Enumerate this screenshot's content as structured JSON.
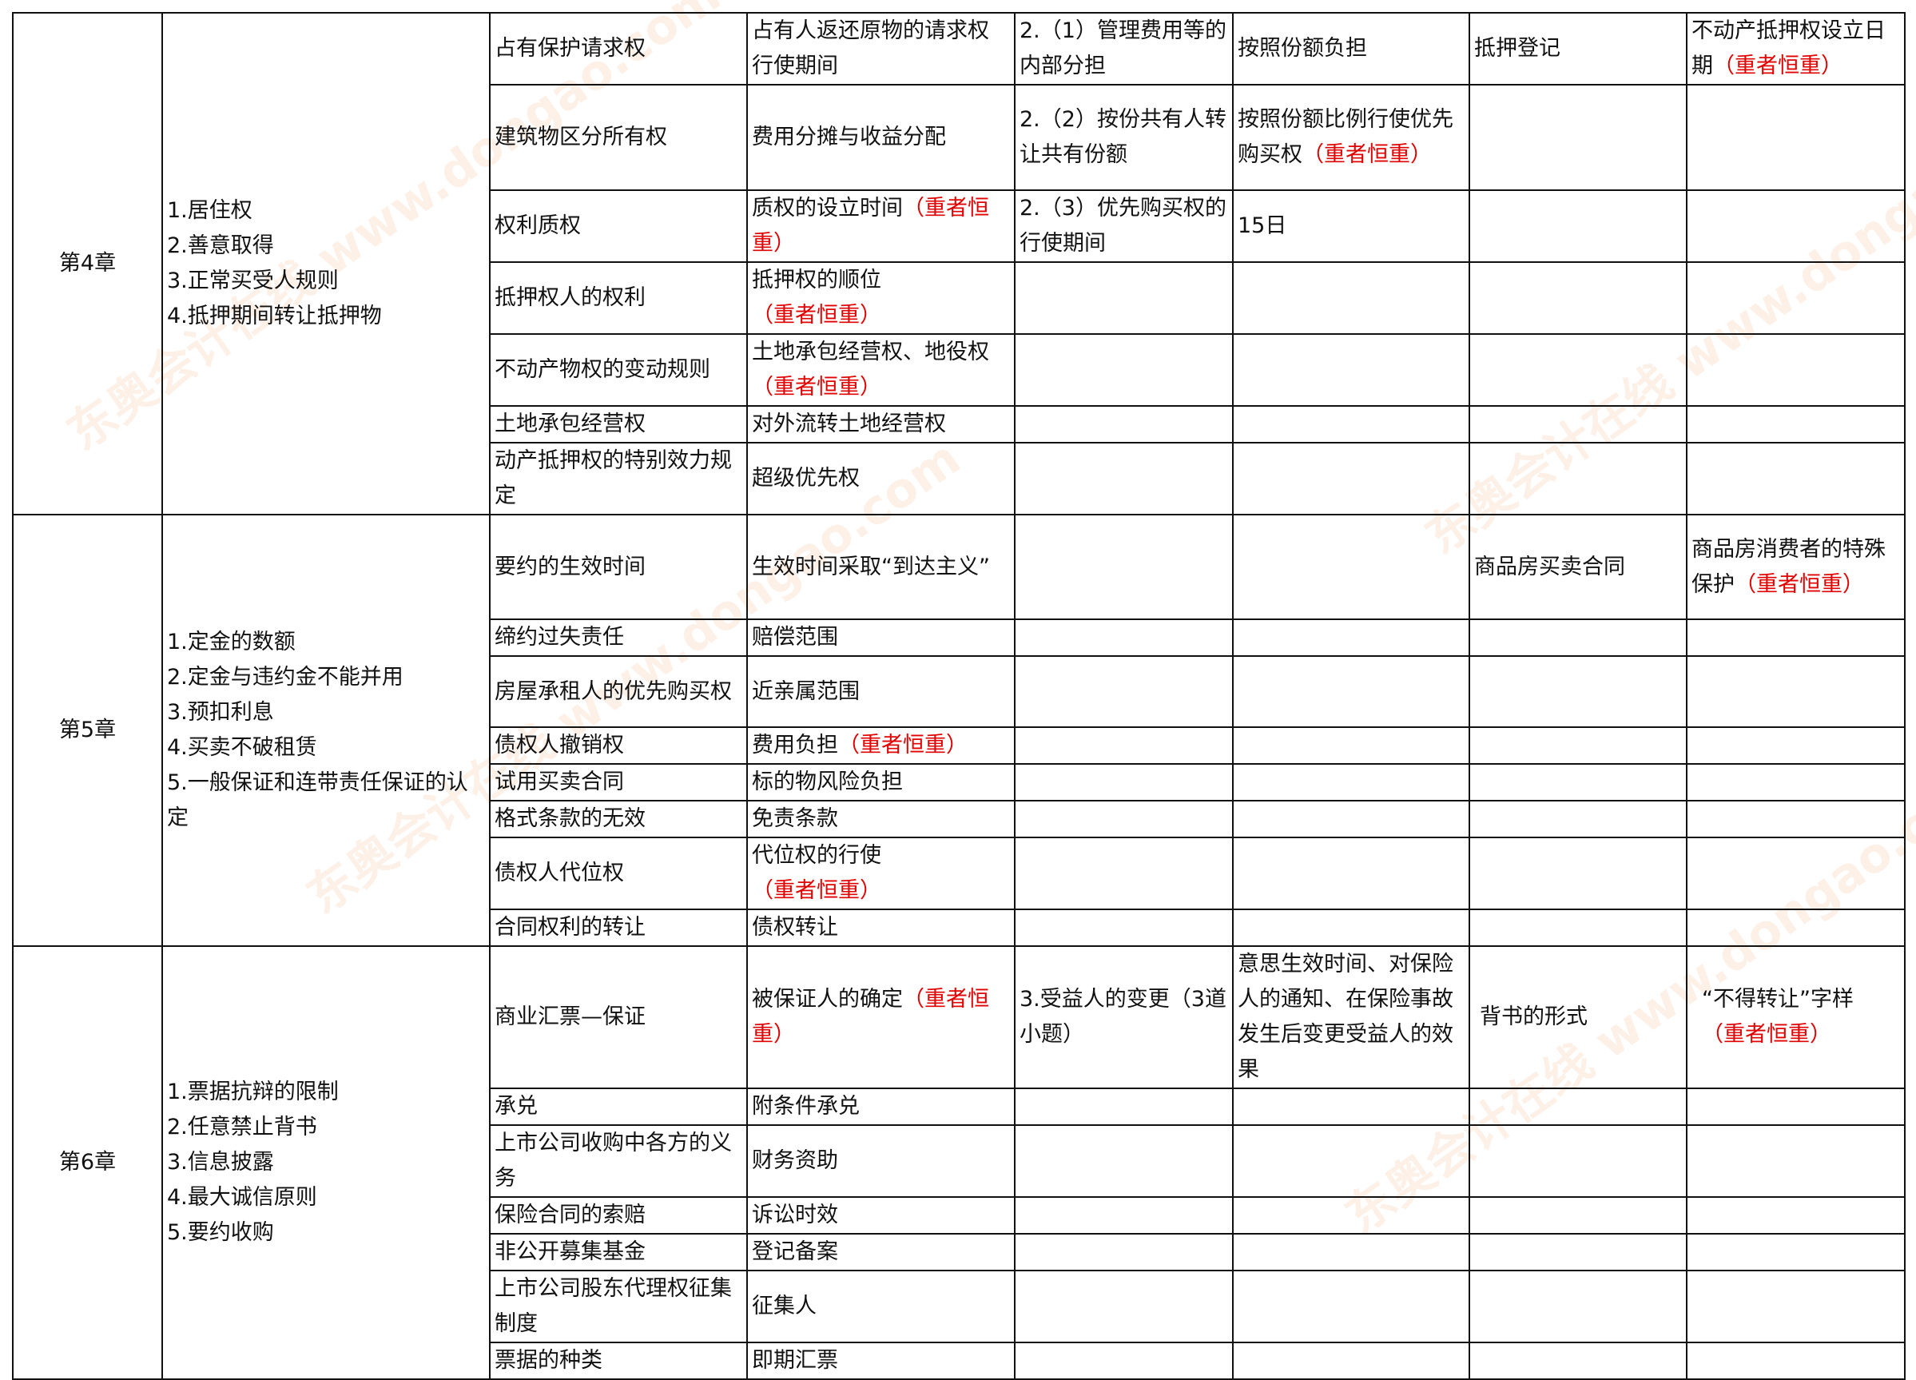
{
  "chapters": [
    {
      "name": "第4章",
      "points": [
        "1.居住权",
        "2.善意取得",
        "3.正常买受人规则",
        "4.抵押期间转让抵押物"
      ],
      "rows": [
        [
          {
            "t": "占有保护请求权"
          },
          {
            "t": "占有人返还原物的请求权行使期间"
          },
          {
            "t": "2.（1）管理费用等的内部分担"
          },
          {
            "t": "按照份额负担"
          },
          {
            "t": "抵押登记"
          },
          {
            "t": "不动产抵押权设立日期",
            "r": "（重者恒重）"
          }
        ],
        [
          {
            "t": "建筑物区分所有权"
          },
          {
            "t": "费用分摊与收益分配"
          },
          {
            "t": "2.（2）按份共有人转让共有份额"
          },
          {
            "t": "按照份额比例行使优先购买权",
            "r": "（重者恒重）"
          },
          {
            "t": ""
          },
          {
            "t": ""
          }
        ],
        [
          {
            "t": "权利质权"
          },
          {
            "t": "质权的设立时间",
            "r": "（重者恒重）"
          },
          {
            "t": "2.（3）优先购买权的行使期间"
          },
          {
            "t": "15日"
          },
          {
            "t": ""
          },
          {
            "t": ""
          }
        ],
        [
          {
            "t": "抵押权人的权利"
          },
          {
            "t": "抵押权的顺位",
            "r": "（重者恒重）"
          },
          {
            "t": ""
          },
          {
            "t": ""
          },
          {
            "t": ""
          },
          {
            "t": ""
          }
        ],
        [
          {
            "t": "不动产物权的变动规则"
          },
          {
            "t": "土地承包经营权、地役权",
            "r": "（重者恒重）"
          },
          {
            "t": ""
          },
          {
            "t": ""
          },
          {
            "t": ""
          },
          {
            "t": ""
          }
        ],
        [
          {
            "t": "土地承包经营权"
          },
          {
            "t": "对外流转土地经营权"
          },
          {
            "t": ""
          },
          {
            "t": ""
          },
          {
            "t": ""
          },
          {
            "t": ""
          }
        ],
        [
          {
            "t": "动产抵押权的特别效力规定"
          },
          {
            "t": "超级优先权"
          },
          {
            "t": ""
          },
          {
            "t": ""
          },
          {
            "t": ""
          },
          {
            "t": ""
          }
        ]
      ]
    },
    {
      "name": "第5章",
      "points": [
        "1.定金的数额",
        "2.定金与违约金不能并用",
        "3.预扣利息",
        "4.买卖不破租赁",
        "5.一般保证和连带责任保证的认定"
      ],
      "rows": [
        [
          {
            "t": "要约的生效时间"
          },
          {
            "t": "生效时间采取“到达主义”"
          },
          {
            "t": ""
          },
          {
            "t": ""
          },
          {
            "t": "商品房买卖合同"
          },
          {
            "t": "商品房消费者的特殊保护",
            "r": "（重者恒重）"
          }
        ],
        [
          {
            "t": "缔约过失责任"
          },
          {
            "t": "赔偿范围"
          },
          {
            "t": ""
          },
          {
            "t": ""
          },
          {
            "t": ""
          },
          {
            "t": ""
          }
        ],
        [
          {
            "t": "房屋承租人的优先购买权"
          },
          {
            "t": "近亲属范围"
          },
          {
            "t": ""
          },
          {
            "t": ""
          },
          {
            "t": ""
          },
          {
            "t": ""
          }
        ],
        [
          {
            "t": "债权人撤销权"
          },
          {
            "t": "费用负担",
            "r": "（重者恒重）"
          },
          {
            "t": ""
          },
          {
            "t": ""
          },
          {
            "t": ""
          },
          {
            "t": ""
          }
        ],
        [
          {
            "t": "试用买卖合同"
          },
          {
            "t": "标的物风险负担"
          },
          {
            "t": ""
          },
          {
            "t": ""
          },
          {
            "t": ""
          },
          {
            "t": ""
          }
        ],
        [
          {
            "t": "格式条款的无效"
          },
          {
            "t": "免责条款"
          },
          {
            "t": ""
          },
          {
            "t": ""
          },
          {
            "t": ""
          },
          {
            "t": ""
          }
        ],
        [
          {
            "t": "债权人代位权"
          },
          {
            "t": "代位权的行使",
            "r": "（重者恒重）"
          },
          {
            "t": ""
          },
          {
            "t": ""
          },
          {
            "t": ""
          },
          {
            "t": ""
          }
        ],
        [
          {
            "t": "合同权利的转让"
          },
          {
            "t": "债权转让"
          },
          {
            "t": ""
          },
          {
            "t": ""
          },
          {
            "t": ""
          },
          {
            "t": ""
          }
        ]
      ]
    },
    {
      "name": "第6章",
      "points": [
        "1.票据抗辩的限制",
        "2.任意禁止背书",
        "3.信息披露",
        "4.最大诚信原则",
        "5.要约收购"
      ],
      "rows": [
        [
          {
            "t": "商业汇票—保证"
          },
          {
            "t": "被保证人的确定",
            "r": "（重者恒重）"
          },
          {
            "t": "3.受益人的变更（3道小题）"
          },
          {
            "t": "意思生效时间、对保险人的通知、在保险事故发生后变更受益人的效果"
          },
          {
            "t": "背书的形式"
          },
          {
            "t": "“不得转让”字样",
            "r": "（重者恒重）"
          }
        ],
        [
          {
            "t": "承兑"
          },
          {
            "t": "附条件承兑"
          },
          {
            "t": ""
          },
          {
            "t": ""
          },
          {
            "t": ""
          },
          {
            "t": ""
          }
        ],
        [
          {
            "t": "上市公司收购中各方的义务"
          },
          {
            "t": "财务资助"
          },
          {
            "t": ""
          },
          {
            "t": ""
          },
          {
            "t": ""
          },
          {
            "t": ""
          }
        ],
        [
          {
            "t": "保险合同的索赔"
          },
          {
            "t": "诉讼时效"
          },
          {
            "t": ""
          },
          {
            "t": ""
          },
          {
            "t": ""
          },
          {
            "t": ""
          }
        ],
        [
          {
            "t": "非公开募集基金"
          },
          {
            "t": "登记备案"
          },
          {
            "t": ""
          },
          {
            "t": ""
          },
          {
            "t": ""
          },
          {
            "t": ""
          }
        ],
        [
          {
            "t": "上市公司股东代理权征集制度"
          },
          {
            "t": "征集人"
          },
          {
            "t": ""
          },
          {
            "t": ""
          },
          {
            "t": ""
          },
          {
            "t": ""
          }
        ],
        [
          {
            "t": "票据的种类"
          },
          {
            "t": "即期汇票"
          },
          {
            "t": ""
          },
          {
            "t": ""
          },
          {
            "t": ""
          },
          {
            "t": ""
          }
        ]
      ]
    }
  ],
  "watermark": "东奥会计在线 www.dongao.com",
  "colors": {
    "emphasis": "#e00000",
    "border": "#111111"
  }
}
